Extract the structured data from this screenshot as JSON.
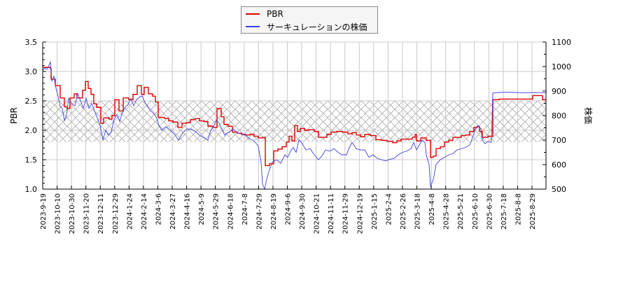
{
  "chart_data": {
    "type": "line",
    "title": "",
    "legend": {
      "position": "top-center",
      "entries": [
        {
          "label": "PBR",
          "color": "#e00000"
        },
        {
          "label": "サーキュレーションの株価",
          "color": "#4040e0"
        }
      ]
    },
    "xlabel": "",
    "ylabel_left": "PBR",
    "ylabel_right": "株価",
    "ylim_left": [
      1.0,
      3.5
    ],
    "ylim_right": [
      500,
      1100
    ],
    "yticks_left": [
      "1.0",
      "1.5",
      "2.0",
      "2.5",
      "3.0",
      "3.5"
    ],
    "yticks_right": [
      "500",
      "600",
      "700",
      "800",
      "900",
      "1000",
      "1100"
    ],
    "xticks": [
      "2023-9-19",
      "2023-10-10",
      "2023-10-30",
      "2023-11-20",
      "2023-12-11",
      "2023-12-29",
      "2024-1-24",
      "2024-2-14",
      "2024-3-6",
      "2024-3-27",
      "2024-4-16",
      "2024-5-9",
      "2024-5-29",
      "2024-6-18",
      "2024-7-8",
      "2024-7-29",
      "2024-8-19",
      "2024-9-6",
      "2024-9-30",
      "2024-10-21",
      "2024-11-11",
      "2024-11-29",
      "2024-12-19",
      "2025-1-15",
      "2025-2-4",
      "2025-2-26",
      "2025-3-18",
      "2025-4-8",
      "2025-4-28",
      "2025-5-21",
      "2025-6-10",
      "2025-6-30",
      "2025-7-18",
      "2025-8-8",
      "2025-8-29"
    ],
    "grid": true,
    "shaded_band": {
      "axis": "left",
      "from": 1.8,
      "to": 2.5,
      "pattern": "crosshatch"
    },
    "series": [
      {
        "name": "PBR",
        "axis": "left",
        "color": "#e00000",
        "step": true,
        "points": [
          [
            0,
            3.07
          ],
          [
            11,
            3.05
          ],
          [
            12,
            2.87
          ],
          [
            18,
            2.76
          ],
          [
            25,
            2.55
          ],
          [
            31,
            2.4
          ],
          [
            35,
            2.37
          ],
          [
            39,
            2.55
          ],
          [
            45,
            2.62
          ],
          [
            49,
            2.55
          ],
          [
            57,
            2.68
          ],
          [
            61,
            2.83
          ],
          [
            65,
            2.71
          ],
          [
            69,
            2.61
          ],
          [
            73,
            2.45
          ],
          [
            77,
            2.39
          ],
          [
            83,
            2.12
          ],
          [
            87,
            2.21
          ],
          [
            95,
            2.19
          ],
          [
            99,
            2.25
          ],
          [
            103,
            2.52
          ],
          [
            109,
            2.33
          ],
          [
            115,
            2.55
          ],
          [
            123,
            2.52
          ],
          [
            129,
            2.61
          ],
          [
            135,
            2.76
          ],
          [
            141,
            2.61
          ],
          [
            145,
            2.73
          ],
          [
            151,
            2.62
          ],
          [
            157,
            2.58
          ],
          [
            161,
            2.48
          ],
          [
            165,
            2.22
          ],
          [
            174,
            2.2
          ],
          [
            180,
            2.16
          ],
          [
            186,
            2.14
          ],
          [
            193,
            2.05
          ],
          [
            199,
            2.12
          ],
          [
            205,
            2.13
          ],
          [
            211,
            2.18
          ],
          [
            218,
            2.2
          ],
          [
            224,
            2.16
          ],
          [
            230,
            2.15
          ],
          [
            236,
            2.07
          ],
          [
            243,
            2.05
          ],
          [
            249,
            2.37
          ],
          [
            255,
            2.23
          ],
          [
            259,
            2.1
          ],
          [
            265,
            2.07
          ],
          [
            271,
            1.97
          ],
          [
            278,
            1.95
          ],
          [
            284,
            1.93
          ],
          [
            290,
            1.92
          ],
          [
            296,
            1.93
          ],
          [
            302,
            1.9
          ],
          [
            308,
            1.87
          ],
          [
            314,
            1.88
          ],
          [
            318,
            1.4
          ],
          [
            324,
            1.43
          ],
          [
            330,
            1.65
          ],
          [
            336,
            1.68
          ],
          [
            342,
            1.72
          ],
          [
            348,
            1.8
          ],
          [
            352,
            1.9
          ],
          [
            356,
            1.82
          ],
          [
            360,
            2.08
          ],
          [
            364,
            1.98
          ],
          [
            368,
            2.03
          ],
          [
            374,
            2.0
          ],
          [
            380,
            2.01
          ],
          [
            388,
            1.98
          ],
          [
            394,
            1.88
          ],
          [
            400,
            1.88
          ],
          [
            406,
            1.93
          ],
          [
            412,
            1.97
          ],
          [
            420,
            1.98
          ],
          [
            428,
            1.97
          ],
          [
            436,
            1.94
          ],
          [
            442,
            1.96
          ],
          [
            448,
            1.92
          ],
          [
            454,
            1.89
          ],
          [
            460,
            1.93
          ],
          [
            468,
            1.91
          ],
          [
            476,
            1.84
          ],
          [
            484,
            1.83
          ],
          [
            492,
            1.81
          ],
          [
            500,
            1.79
          ],
          [
            506,
            1.82
          ],
          [
            512,
            1.85
          ],
          [
            520,
            1.85
          ],
          [
            528,
            1.88
          ],
          [
            532,
            1.93
          ],
          [
            534,
            1.82
          ],
          [
            540,
            1.87
          ],
          [
            548,
            1.83
          ],
          [
            554,
            1.54
          ],
          [
            558,
            1.56
          ],
          [
            562,
            1.69
          ],
          [
            568,
            1.72
          ],
          [
            574,
            1.8
          ],
          [
            580,
            1.83
          ],
          [
            586,
            1.88
          ],
          [
            592,
            1.88
          ],
          [
            598,
            1.91
          ],
          [
            604,
            1.92
          ],
          [
            610,
            1.98
          ],
          [
            616,
            2.05
          ],
          [
            620,
            2.06
          ],
          [
            624,
            1.98
          ],
          [
            628,
            1.88
          ],
          [
            636,
            1.9
          ],
          [
            641,
            1.9
          ],
          [
            643,
            2.52
          ],
          [
            652,
            2.53
          ],
          [
            666,
            2.53
          ],
          [
            690,
            2.53
          ],
          [
            700,
            2.59
          ],
          [
            714,
            2.52
          ],
          [
            719,
            2.52
          ]
        ]
      },
      {
        "name": "サーキュレーションの株価",
        "axis": "right",
        "color": "#4040e0",
        "step": false,
        "points": [
          [
            0,
            983
          ],
          [
            3,
            995
          ],
          [
            6,
            988
          ],
          [
            9,
            1005
          ],
          [
            11,
            1020
          ],
          [
            13,
            940
          ],
          [
            16,
            960
          ],
          [
            19,
            910
          ],
          [
            22,
            880
          ],
          [
            25,
            835
          ],
          [
            28,
            830
          ],
          [
            31,
            780
          ],
          [
            34,
            800
          ],
          [
            37,
            870
          ],
          [
            40,
            855
          ],
          [
            43,
            845
          ],
          [
            46,
            840
          ],
          [
            50,
            890
          ],
          [
            54,
            860
          ],
          [
            58,
            830
          ],
          [
            62,
            870
          ],
          [
            66,
            830
          ],
          [
            70,
            850
          ],
          [
            74,
            820
          ],
          [
            78,
            790
          ],
          [
            82,
            760
          ],
          [
            86,
            700
          ],
          [
            90,
            740
          ],
          [
            94,
            720
          ],
          [
            98,
            735
          ],
          [
            102,
            785
          ],
          [
            106,
            805
          ],
          [
            110,
            775
          ],
          [
            114,
            815
          ],
          [
            118,
            835
          ],
          [
            122,
            845
          ],
          [
            126,
            870
          ],
          [
            130,
            840
          ],
          [
            134,
            865
          ],
          [
            138,
            875
          ],
          [
            142,
            880
          ],
          [
            146,
            855
          ],
          [
            150,
            835
          ],
          [
            154,
            820
          ],
          [
            158,
            810
          ],
          [
            162,
            795
          ],
          [
            166,
            760
          ],
          [
            170,
            740
          ],
          [
            176,
            755
          ],
          [
            182,
            740
          ],
          [
            188,
            725
          ],
          [
            194,
            700
          ],
          [
            200,
            730
          ],
          [
            206,
            745
          ],
          [
            212,
            745
          ],
          [
            218,
            735
          ],
          [
            224,
            720
          ],
          [
            230,
            710
          ],
          [
            236,
            700
          ],
          [
            240,
            740
          ],
          [
            244,
            755
          ],
          [
            248,
            780
          ],
          [
            252,
            770
          ],
          [
            256,
            745
          ],
          [
            260,
            720
          ],
          [
            264,
            730
          ],
          [
            268,
            735
          ],
          [
            272,
            745
          ],
          [
            278,
            730
          ],
          [
            284,
            725
          ],
          [
            290,
            720
          ],
          [
            296,
            705
          ],
          [
            300,
            700
          ],
          [
            304,
            690
          ],
          [
            308,
            675
          ],
          [
            312,
            610
          ],
          [
            314,
            520
          ],
          [
            317,
            500
          ],
          [
            320,
            540
          ],
          [
            324,
            580
          ],
          [
            328,
            610
          ],
          [
            334,
            620
          ],
          [
            340,
            605
          ],
          [
            346,
            640
          ],
          [
            350,
            630
          ],
          [
            354,
            655
          ],
          [
            358,
            670
          ],
          [
            362,
            650
          ],
          [
            366,
            700
          ],
          [
            370,
            690
          ],
          [
            376,
            660
          ],
          [
            382,
            665
          ],
          [
            388,
            640
          ],
          [
            394,
            620
          ],
          [
            400,
            640
          ],
          [
            404,
            660
          ],
          [
            410,
            655
          ],
          [
            416,
            665
          ],
          [
            422,
            650
          ],
          [
            428,
            640
          ],
          [
            434,
            640
          ],
          [
            438,
            670
          ],
          [
            442,
            690
          ],
          [
            448,
            665
          ],
          [
            454,
            660
          ],
          [
            460,
            660
          ],
          [
            466,
            630
          ],
          [
            472,
            640
          ],
          [
            478,
            625
          ],
          [
            484,
            620
          ],
          [
            490,
            615
          ],
          [
            496,
            622
          ],
          [
            502,
            625
          ],
          [
            508,
            640
          ],
          [
            514,
            650
          ],
          [
            520,
            655
          ],
          [
            526,
            665
          ],
          [
            530,
            690
          ],
          [
            534,
            660
          ],
          [
            538,
            680
          ],
          [
            542,
            700
          ],
          [
            546,
            690
          ],
          [
            548,
            640
          ],
          [
            552,
            600
          ],
          [
            554,
            510
          ],
          [
            558,
            540
          ],
          [
            562,
            600
          ],
          [
            568,
            620
          ],
          [
            574,
            630
          ],
          [
            580,
            640
          ],
          [
            586,
            645
          ],
          [
            592,
            660
          ],
          [
            598,
            665
          ],
          [
            604,
            670
          ],
          [
            610,
            680
          ],
          [
            614,
            710
          ],
          [
            618,
            745
          ],
          [
            622,
            760
          ],
          [
            626,
            745
          ],
          [
            628,
            700
          ],
          [
            632,
            685
          ],
          [
            636,
            695
          ],
          [
            641,
            690
          ],
          [
            643,
            892
          ],
          [
            656,
            895
          ],
          [
            670,
            895
          ],
          [
            688,
            893
          ],
          [
            704,
            894
          ],
          [
            719,
            893
          ]
        ]
      }
    ]
  }
}
